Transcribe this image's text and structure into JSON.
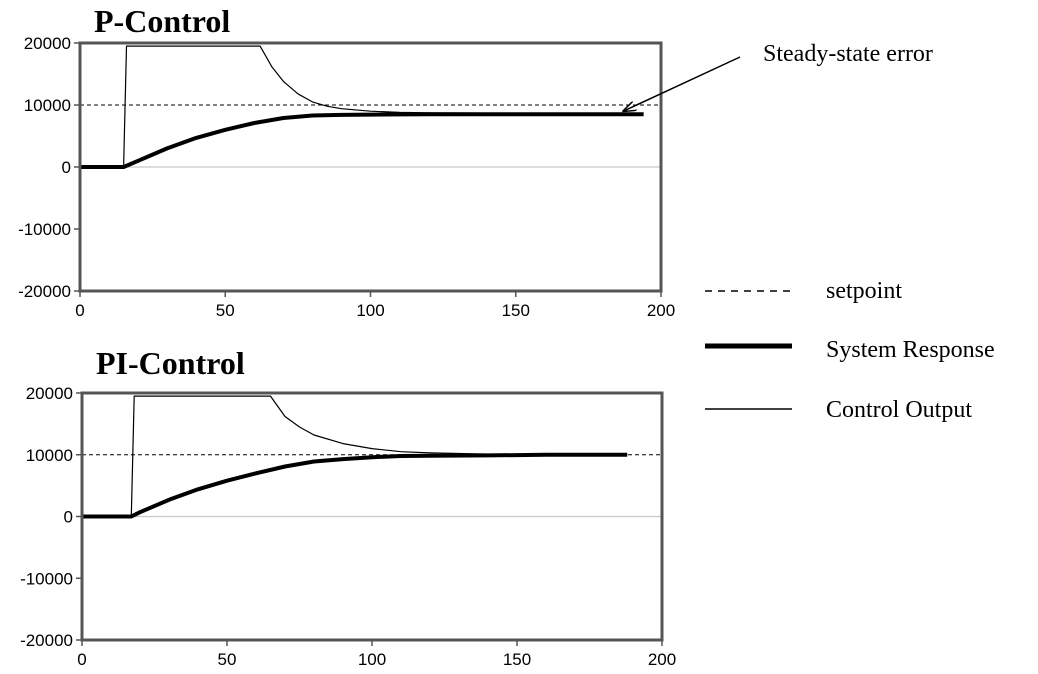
{
  "legend": {
    "items": [
      {
        "label": "setpoint",
        "style": "dashed"
      },
      {
        "label": "System Response",
        "style": "thick"
      },
      {
        "label": "Control Output",
        "style": "thin"
      }
    ]
  },
  "chart_data": [
    {
      "type": "line",
      "title": "P-Control",
      "xlim": [
        0,
        200
      ],
      "ylim": [
        -20000,
        20000
      ],
      "xticks": [
        "0",
        "50",
        "100",
        "150",
        "200"
      ],
      "yticks": [
        "20000",
        "10000",
        "0",
        "-10000",
        "-20000"
      ],
      "zero_line": true,
      "annotation": {
        "text": "Steady-state error",
        "target_x": 187,
        "target_y": 9000
      },
      "setpoint": {
        "x": [
          0,
          200
        ],
        "y": [
          10000,
          10000
        ]
      },
      "series": [
        {
          "name": "Control Output",
          "x": [
            0,
            15,
            16,
            62,
            66,
            70,
            75,
            80,
            85,
            90,
            100,
            110,
            120,
            140,
            160,
            180,
            194
          ],
          "y": [
            0,
            0,
            19500,
            19500,
            16200,
            13800,
            11800,
            10500,
            9800,
            9400,
            9000,
            8800,
            8750,
            8700,
            8700,
            8700,
            8700
          ]
        },
        {
          "name": "System Response",
          "x": [
            0,
            15,
            20,
            30,
            40,
            50,
            60,
            70,
            80,
            90,
            100,
            120,
            140,
            160,
            180,
            194
          ],
          "y": [
            0,
            0,
            1000,
            3000,
            4700,
            6000,
            7100,
            7900,
            8300,
            8400,
            8450,
            8500,
            8500,
            8500,
            8500,
            8500
          ]
        }
      ]
    },
    {
      "type": "line",
      "title": "PI-Control",
      "xlim": [
        0,
        200
      ],
      "ylim": [
        -20000,
        20000
      ],
      "xticks": [
        "0",
        "50",
        "100",
        "150",
        "200"
      ],
      "yticks": [
        "20000",
        "10000",
        "0",
        "-10000",
        "-20000"
      ],
      "zero_line": true,
      "setpoint": {
        "x": [
          0,
          200
        ],
        "y": [
          10000,
          10000
        ]
      },
      "series": [
        {
          "name": "Control Output",
          "x": [
            0,
            17,
            18,
            65,
            70,
            75,
            80,
            90,
            100,
            110,
            120,
            130,
            140,
            150,
            160,
            170,
            188
          ],
          "y": [
            0,
            0,
            19500,
            19500,
            16200,
            14500,
            13200,
            11800,
            11000,
            10500,
            10300,
            10200,
            10100,
            10050,
            10000,
            10000,
            10000
          ]
        },
        {
          "name": "System Response",
          "x": [
            0,
            17,
            20,
            30,
            40,
            50,
            60,
            70,
            80,
            90,
            100,
            110,
            120,
            140,
            160,
            188
          ],
          "y": [
            0,
            0,
            700,
            2700,
            4400,
            5800,
            7000,
            8100,
            8900,
            9300,
            9600,
            9800,
            9850,
            9900,
            10000,
            10000
          ]
        }
      ]
    }
  ]
}
